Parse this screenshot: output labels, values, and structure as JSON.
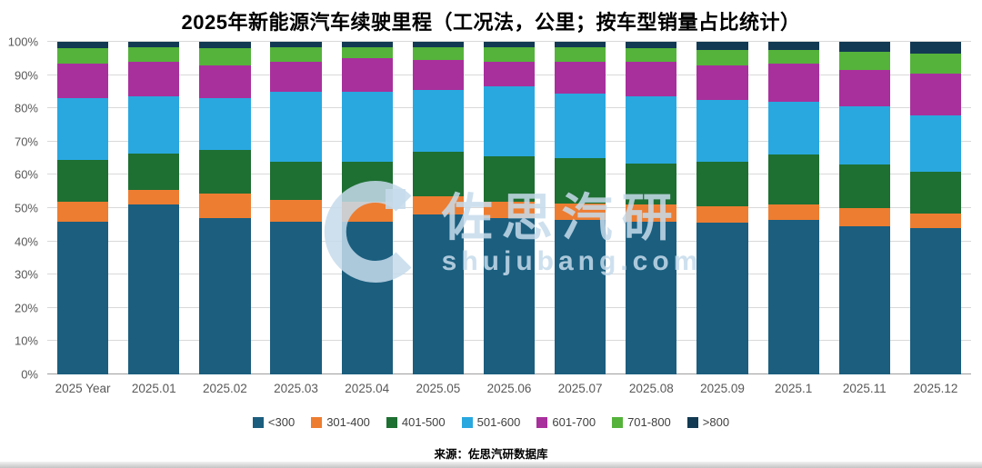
{
  "title": "2025年新能源汽车续驶里程（工况法，公里；按车型销量占比统计）",
  "source": "来源：佐思汽研数据库",
  "watermark": {
    "logo": "c-ring-logo",
    "text": "佐思汽研",
    "subtext": "shujubang.com",
    "color": "#c6dbeb"
  },
  "chart_data": {
    "type": "bar",
    "subtype": "stacked-100-percent",
    "title": "2025年新能源汽车续驶里程（工况法，公里；按车型销量占比统计）",
    "xlabel": "",
    "ylabel": "",
    "ylim": [
      0,
      100
    ],
    "grid": true,
    "legend_position": "bottom",
    "y_ticks": [
      "0%",
      "10%",
      "20%",
      "30%",
      "40%",
      "50%",
      "60%",
      "70%",
      "80%",
      "90%",
      "100%"
    ],
    "categories": [
      "2025 Year",
      "2025.01",
      "2025.02",
      "2025.03",
      "2025.04",
      "2025.05",
      "2025.06",
      "2025.07",
      "2025.08",
      "2025.09",
      "2025.1",
      "2025.11",
      "2025.12"
    ],
    "series": [
      {
        "name": "<300",
        "color": "#1b5e7e",
        "values": [
          46,
          51,
          47,
          46,
          46,
          48,
          47,
          46.5,
          46,
          45.5,
          46.5,
          44.5,
          44
        ]
      },
      {
        "name": "301-400",
        "color": "#ed7d31",
        "values": [
          6,
          4.5,
          7.5,
          6.5,
          6,
          5.5,
          5,
          5,
          5,
          5,
          4.5,
          5.5,
          4.5
        ]
      },
      {
        "name": "401-500",
        "color": "#1e6f32",
        "values": [
          12.5,
          11,
          13,
          11.5,
          12,
          13.5,
          13.5,
          13.5,
          12.5,
          13.5,
          15,
          13,
          12.5
        ]
      },
      {
        "name": "501-600",
        "color": "#29a8e0",
        "values": [
          18.5,
          17,
          15.5,
          21,
          21,
          18.5,
          21,
          19.5,
          20,
          18.5,
          16,
          17.5,
          17
        ]
      },
      {
        "name": "601-700",
        "color": "#a8309c",
        "values": [
          10.5,
          10.5,
          10,
          9,
          10,
          9,
          7.5,
          9.5,
          10.5,
          10.5,
          11.5,
          11,
          12.5
        ]
      },
      {
        "name": "701-800",
        "color": "#55b33b",
        "values": [
          4.5,
          4.5,
          5,
          4.5,
          3.5,
          4,
          4.5,
          4.5,
          4,
          4.5,
          4,
          5.5,
          6
        ]
      },
      {
        "name": ">800",
        "color": "#123a53",
        "values": [
          2,
          1.5,
          2,
          1.5,
          1.5,
          1.5,
          1.5,
          1.5,
          2,
          2.5,
          2.5,
          3,
          3.5
        ]
      }
    ]
  }
}
